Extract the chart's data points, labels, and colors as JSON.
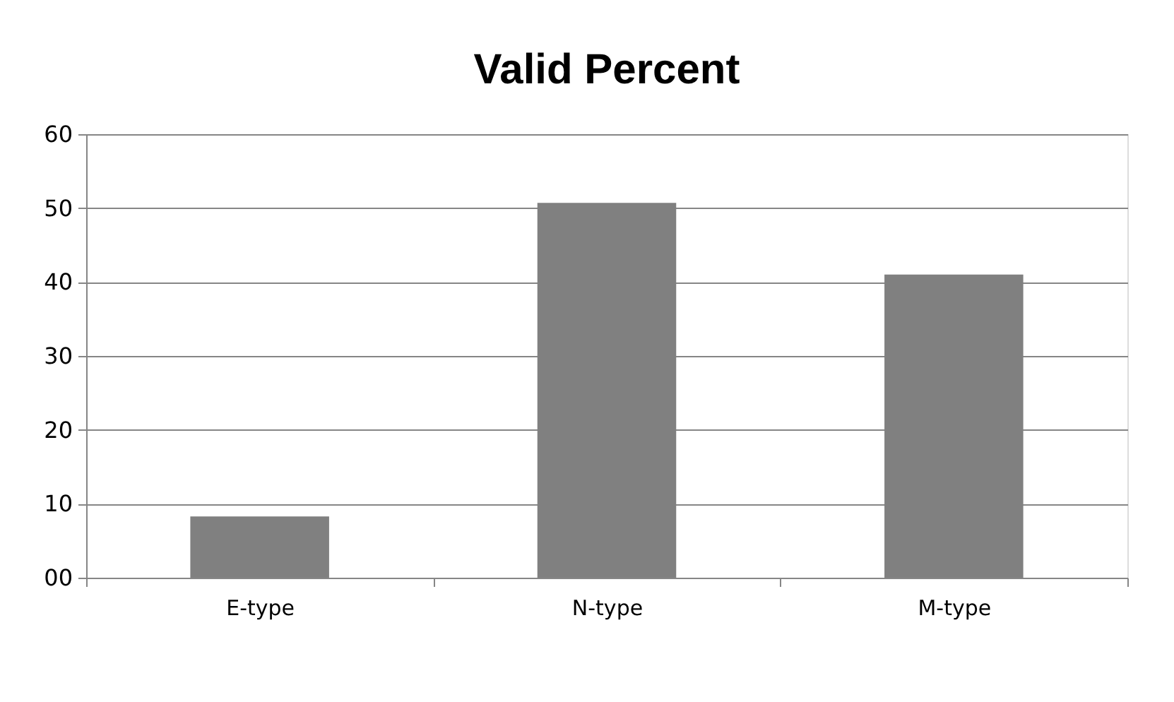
{
  "chart_data": {
    "type": "bar",
    "title": "Valid Percent",
    "categories": [
      "E-type",
      "N-type",
      "M-type"
    ],
    "values": [
      8.3,
      50.7,
      41.0
    ],
    "color": "#808080",
    "ylim": [
      0,
      60
    ],
    "yticks": [
      {
        "value": 0,
        "label": "00"
      },
      10,
      20,
      30,
      40,
      50,
      60
    ],
    "grid": "y"
  }
}
